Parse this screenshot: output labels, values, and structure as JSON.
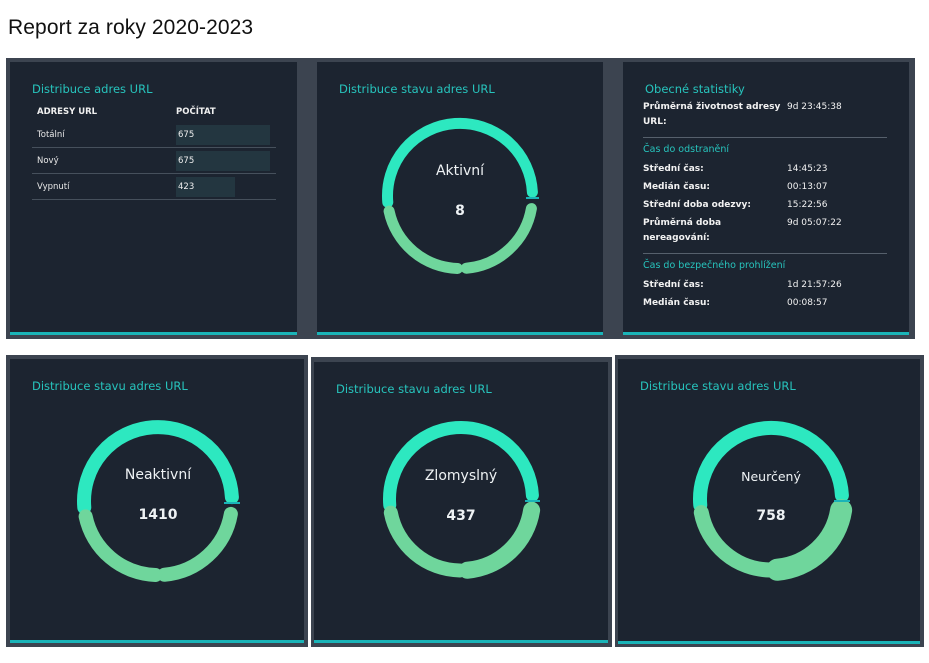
{
  "report_title": "Report za roky 2020-2023",
  "colors": {
    "panel_bg": "#1c2430",
    "accent_text": "#27c4bd",
    "bottom_bar": "#1ab4b8",
    "donut_top": "#2de8c0",
    "donut_bottom": "#6fd69c"
  },
  "url_distribution": {
    "title": "Distribuce adres URL",
    "headers": [
      "ADRESY URL",
      "POČÍTAT"
    ],
    "rows": [
      {
        "label": "Totální",
        "count": "675",
        "value": 675
      },
      {
        "label": "Nový",
        "count": "675",
        "value": 675
      },
      {
        "label": "Vypnutí",
        "count": "423",
        "value": 423
      }
    ]
  },
  "general_stats": {
    "title": "Obecné statistiky",
    "avg_life_label": "Průměrná životnost adresy URL:",
    "avg_life_value": "9d 23:45:38",
    "removal": {
      "title": "Čas do odstranění",
      "rows": [
        {
          "k": "Střední čas:",
          "v": "14:45:23"
        },
        {
          "k": "Medián času:",
          "v": "00:13:07"
        },
        {
          "k": "Střední doba odezvy:",
          "v": "15:22:56"
        },
        {
          "k": "Průměrná doba nereagování:",
          "v": "9d 05:07:22"
        }
      ]
    },
    "safe_browsing": {
      "title": "Čas do bezpečného prohlížení",
      "rows": [
        {
          "k": "Střední čas:",
          "v": "1d 21:57:26"
        },
        {
          "k": "Medián času:",
          "v": "00:08:57"
        }
      ]
    }
  },
  "donuts": [
    {
      "title": "Distribuce stavu adres URL",
      "label": "Aktivní",
      "value": "8"
    },
    {
      "title": "Distribuce stavu adres URL",
      "label": "Neaktivní",
      "value": "1410"
    },
    {
      "title": "Distribuce stavu adres URL",
      "label": "Zlomyslný",
      "value": "437"
    },
    {
      "title": "Distribuce stavu adres URL",
      "label": "Neurčený",
      "value": "758"
    }
  ]
}
